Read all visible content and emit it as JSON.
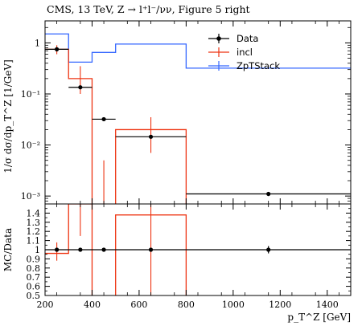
{
  "chart_data": [
    {
      "type": "step",
      "panel": "main",
      "title": "CMS, 13 TeV, Z → l⁺l⁻/νν, Figure 5 right",
      "ylabel": "1/σ dσ/dp_T^Z [1/GeV]",
      "yscale": "log",
      "xlim": [
        200,
        1500
      ],
      "ylim": [
        0.0007,
        2.7
      ],
      "yticks": [
        0.001,
        0.01,
        0.1,
        1
      ],
      "ytick_labels": [
        "10⁻³",
        "10⁻²",
        "10⁻¹",
        "1"
      ],
      "legend_position": "top-right",
      "bin_edges": [
        200,
        250,
        300,
        400,
        500,
        800,
        1500
      ],
      "series": [
        {
          "name": "Data",
          "style": "points",
          "color": "#000000",
          "points": [
            {
              "x": 250,
              "xerr": [
                200,
                300
              ],
              "y": 0.75,
              "yerr": [
                0.68,
                0.82
              ]
            },
            {
              "x": 350,
              "xerr": [
                300,
                400
              ],
              "y": 0.135,
              "yerr": [
                0.125,
                0.145
              ]
            },
            {
              "x": 450,
              "xerr": [
                400,
                500
              ],
              "y": 0.032,
              "yerr": [
                0.03,
                0.034
              ]
            },
            {
              "x": 650,
              "xerr": [
                500,
                800
              ],
              "y": 0.0145,
              "yerr": [
                0.0135,
                0.0155
              ]
            },
            {
              "x": 1150,
              "xerr": [
                800,
                1500
              ],
              "y": 0.0011,
              "yerr": [
                0.001,
                0.0012
              ]
            }
          ]
        },
        {
          "name": "incl",
          "style": "step",
          "color": "#ee3311",
          "values": [
            0.75,
            0.75,
            0.2,
            0.0006,
            0.02,
            0.0006
          ],
          "errorbars": [
            {
              "x": 250,
              "y": 0.75,
              "yerr": [
                0.6,
                0.9
              ]
            },
            {
              "x": 350,
              "y": 0.2,
              "yerr": [
                0.1,
                0.35
              ]
            },
            {
              "x": 450,
              "y": 0.0006,
              "yerr": [
                0.0006,
                0.005
              ]
            },
            {
              "x": 650,
              "y": 0.02,
              "yerr": [
                0.007,
                0.035
              ]
            }
          ]
        },
        {
          "name": "ZpTStack",
          "style": "step",
          "color": "#3366ff",
          "values": [
            1.5,
            1.5,
            0.42,
            0.65,
            0.95,
            0.32
          ]
        }
      ]
    },
    {
      "type": "step",
      "panel": "ratio",
      "ylabel": "MC/Data",
      "xlabel": "p_T^Z [GeV]",
      "xlim": [
        200,
        1500
      ],
      "ylim": [
        0.5,
        1.5
      ],
      "xticks": [
        200,
        400,
        600,
        800,
        1000,
        1200,
        1400
      ],
      "yticks": [
        0.5,
        0.6,
        0.7,
        0.8,
        0.9,
        1,
        1.1,
        1.2,
        1.3,
        1.4
      ],
      "reference_line": 1,
      "series": [
        {
          "name": "Data",
          "style": "points",
          "color": "#000000",
          "points": [
            {
              "x": 250,
              "xerr": [
                200,
                300
              ],
              "y": 1.0,
              "yerr": [
                0.98,
                1.02
              ]
            },
            {
              "x": 350,
              "xerr": [
                300,
                400
              ],
              "y": 1.0,
              "yerr": [
                0.99,
                1.01
              ]
            },
            {
              "x": 450,
              "xerr": [
                400,
                500
              ],
              "y": 1.0,
              "yerr": [
                0.99,
                1.01
              ]
            },
            {
              "x": 650,
              "xerr": [
                500,
                800
              ],
              "y": 1.0,
              "yerr": [
                0.99,
                1.01
              ]
            },
            {
              "x": 1150,
              "xerr": [
                800,
                1500
              ],
              "y": 1.0,
              "yerr": [
                0.96,
                1.04
              ]
            }
          ]
        },
        {
          "name": "incl",
          "style": "step",
          "color": "#ee3311",
          "values": [
            0.96,
            0.96,
            1.5,
            0.0,
            1.38,
            0.0
          ],
          "errorbars": [
            {
              "x": 250,
              "y": 0.96,
              "yerr": [
                0.88,
                1.08
              ]
            },
            {
              "x": 350,
              "y": 1.5,
              "yerr": [
                1.15,
                1.5
              ]
            },
            {
              "x": 650,
              "y": 1.38,
              "yerr": [
                0.5,
                1.5
              ]
            }
          ]
        }
      ]
    }
  ]
}
